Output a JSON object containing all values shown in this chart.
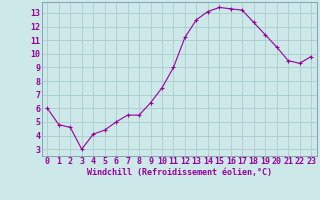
{
  "x": [
    0,
    1,
    2,
    3,
    4,
    5,
    6,
    7,
    8,
    9,
    10,
    11,
    12,
    13,
    14,
    15,
    16,
    17,
    18,
    19,
    20,
    21,
    22,
    23
  ],
  "y": [
    6.0,
    4.8,
    4.6,
    3.0,
    4.1,
    4.4,
    5.0,
    5.5,
    5.5,
    6.4,
    7.5,
    9.0,
    11.2,
    12.5,
    13.1,
    13.4,
    13.3,
    13.2,
    12.3,
    11.4,
    10.5,
    9.5,
    9.3,
    9.8
  ],
  "line_color": "#990099",
  "marker": "+",
  "marker_size": 3.5,
  "bg_color": "#cce8e8",
  "grid_color": "#aacccc",
  "xlabel": "Windchill (Refroidissement éolien,°C)",
  "xlabel_color": "#990099",
  "xlabel_fontsize": 6.0,
  "tick_label_color": "#990099",
  "tick_fontsize": 6.0,
  "ylim": [
    2.5,
    13.8
  ],
  "xlim": [
    -0.5,
    23.5
  ],
  "yticks": [
    3,
    4,
    5,
    6,
    7,
    8,
    9,
    10,
    11,
    12,
    13
  ],
  "xticks": [
    0,
    1,
    2,
    3,
    4,
    5,
    6,
    7,
    8,
    9,
    10,
    11,
    12,
    13,
    14,
    15,
    16,
    17,
    18,
    19,
    20,
    21,
    22,
    23
  ],
  "spine_color": "#7799aa"
}
